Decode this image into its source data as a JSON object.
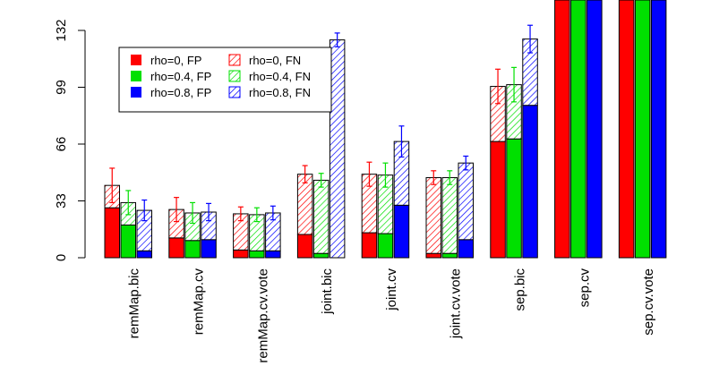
{
  "chart_data": {
    "type": "bar",
    "title": "",
    "xlabel": "",
    "ylabel": "",
    "ylim": [
      0,
      132
    ],
    "yticks": [
      0,
      33,
      66,
      99,
      132
    ],
    "categories": [
      "remMap.bic",
      "remMap.cv",
      "remMap.cv.vote",
      "joint.bic",
      "joint.cv",
      "joint.cv.vote",
      "sep.bic",
      "sep.cv",
      "sep.cv.vote"
    ],
    "stacking": "FP solid at bottom, FN hatched stacked on top",
    "series": [
      {
        "name": "rho=0",
        "color": "#ff0000",
        "fp": [
          29,
          11.5,
          4.5,
          13.5,
          14.5,
          2.5,
          67.5,
          200,
          200
        ],
        "fn": [
          13,
          16.5,
          21,
          35,
          34,
          44,
          32,
          0,
          0
        ],
        "total_error": [
          10,
          7,
          4,
          5,
          7,
          4,
          10,
          null,
          null
        ]
      },
      {
        "name": "rho=0.4",
        "color": "#00e000",
        "fp": [
          19,
          10,
          4,
          2.5,
          14,
          2.5,
          69,
          200,
          200
        ],
        "fn": [
          13,
          16,
          21,
          42.5,
          34,
          44,
          31.5,
          0,
          0
        ],
        "total_error": [
          7,
          6,
          4,
          4,
          7,
          4,
          10,
          null,
          null
        ]
      },
      {
        "name": "rho=0.8",
        "color": "#0000ff",
        "fp": [
          4,
          10.5,
          4,
          0,
          30.5,
          10.5,
          88.5,
          200,
          200
        ],
        "fn": [
          23.5,
          16,
          22,
          126.5,
          37,
          44.5,
          38.5,
          0,
          0
        ],
        "total_error": [
          6,
          5,
          4,
          4,
          9,
          4,
          8,
          null,
          null
        ]
      }
    ],
    "legend": {
      "placement": "top-left",
      "entries": [
        "rho=0, FP",
        "rho=0.4, FP",
        "rho=0.8, FP",
        "rho=0, FN",
        "rho=0.4, FN",
        "rho=0.8, FN"
      ]
    },
    "grid": false
  }
}
